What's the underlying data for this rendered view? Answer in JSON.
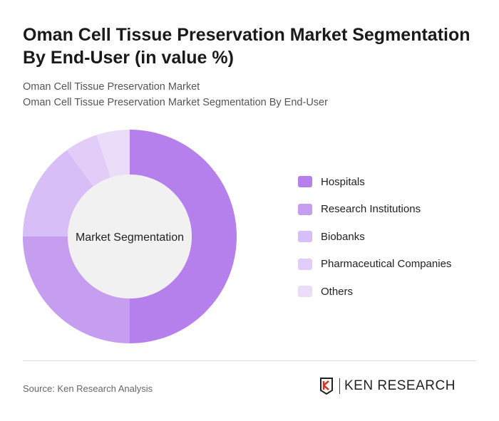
{
  "title": "Oman Cell Tissue Preservation Market Segmentation By End-User (in value %)",
  "subtitle1": "Oman Cell Tissue Preservation Market",
  "subtitle2": "Oman Cell Tissue Preservation Market Segmentation By End-User",
  "source": "Source: Ken Research Analysis",
  "logo_text": "KEN RESEARCH",
  "chart_data": {
    "type": "pie",
    "donut": true,
    "center_label": "Market Segmentation",
    "categories": [
      "Hospitals",
      "Research Institutions",
      "Biobanks",
      "Pharmaceutical Companies",
      "Others"
    ],
    "values": [
      50,
      25,
      15,
      5,
      5
    ],
    "colors": [
      "#b57fec",
      "#c59ef0",
      "#d8bef6",
      "#e2cdf8",
      "#ebdcfa"
    ],
    "legend_position": "right"
  }
}
